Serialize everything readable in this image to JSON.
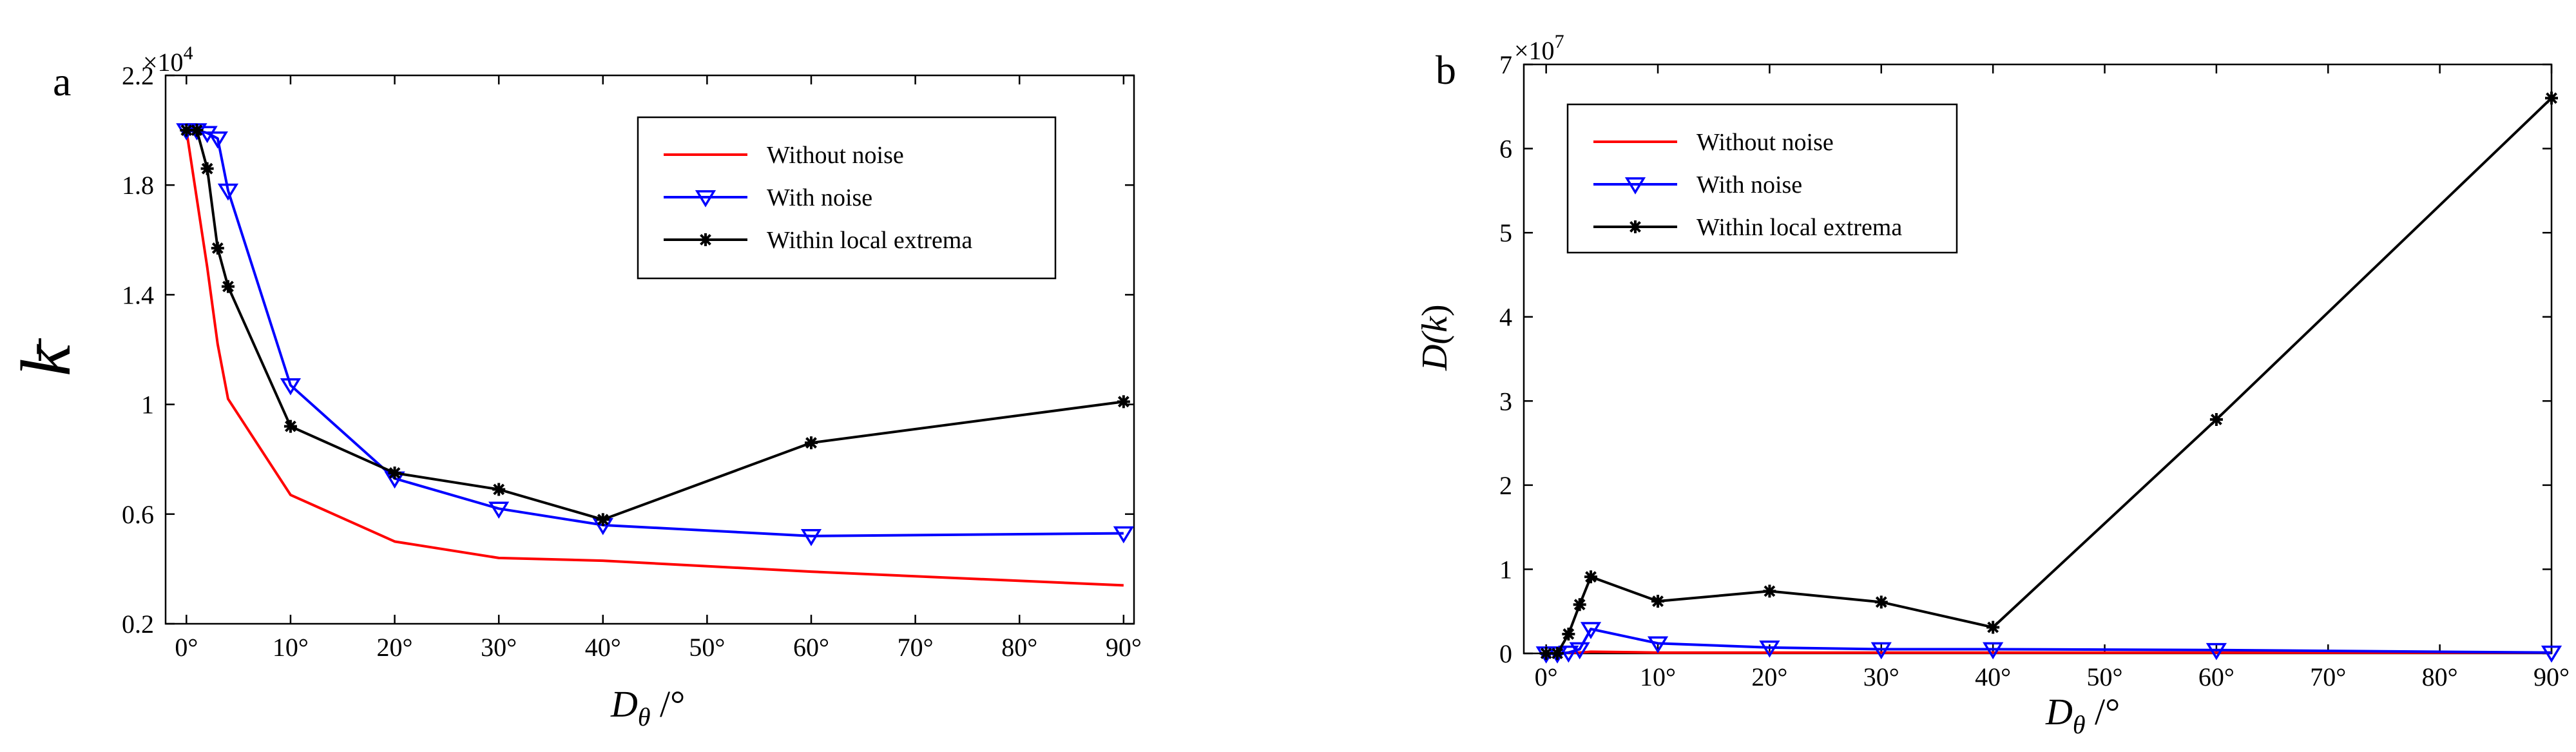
{
  "chart_data": [
    {
      "panel_label": "a",
      "type": "line",
      "xlabel_main": "D",
      "xlabel_sub": "θ",
      "xlabel_unit": " /°",
      "ylabel": "k",
      "exponent_label": "×10",
      "exponent_power": "4",
      "xlim": [
        -2,
        91
      ],
      "ylim": [
        0.2,
        2.2
      ],
      "x_tick_positions": [
        0,
        10,
        20,
        30,
        40,
        50,
        60,
        70,
        80,
        90
      ],
      "x_tick_labels": [
        "0°",
        "10°",
        "20°",
        "30°",
        "40°",
        "50°",
        "60°",
        "70°",
        "80°",
        "90°"
      ],
      "y_ticks": [
        0.2,
        0.6,
        1.0,
        1.4,
        1.8,
        2.2
      ],
      "y_tick_labels": [
        "0.2",
        "0.6",
        "1",
        "1.4",
        "1.8",
        "2.2"
      ],
      "legend_position": "top-right",
      "series": [
        {
          "name": "Without noise",
          "color": "#ff0000",
          "marker": "none",
          "x": [
            0,
            1,
            2,
            3,
            4,
            10,
            20,
            30,
            40,
            60,
            90
          ],
          "y": [
            2.0,
            1.75,
            1.5,
            1.22,
            1.02,
            0.67,
            0.5,
            0.44,
            0.43,
            0.39,
            0.34
          ]
        },
        {
          "name": "With noise",
          "color": "#0000ff",
          "marker": "triangle-down",
          "x": [
            0,
            1,
            2,
            3,
            4,
            10,
            20,
            30,
            40,
            60,
            90
          ],
          "y": [
            2.0,
            2.0,
            1.99,
            1.97,
            1.78,
            1.07,
            0.73,
            0.62,
            0.56,
            0.52,
            0.53
          ]
        },
        {
          "name": "Within local extrema",
          "color": "#000000",
          "marker": "star",
          "x": [
            0,
            1,
            2,
            3,
            4,
            10,
            20,
            30,
            40,
            60,
            90
          ],
          "y": [
            2.0,
            2.0,
            1.86,
            1.57,
            1.43,
            0.92,
            0.75,
            0.69,
            0.58,
            0.86,
            1.01
          ]
        }
      ]
    },
    {
      "panel_label": "b",
      "type": "line",
      "xlabel_main": "D",
      "xlabel_sub": "θ",
      "xlabel_unit": " /°",
      "ylabel_main": "D(",
      "ylabel_var": "k",
      "ylabel_close": ")",
      "exponent_label": "×10",
      "exponent_power": "7",
      "xlim": [
        -2,
        90
      ],
      "ylim": [
        0,
        7
      ],
      "x_tick_positions": [
        0,
        10,
        20,
        30,
        40,
        50,
        60,
        70,
        80,
        90
      ],
      "x_tick_labels": [
        "0°",
        "10°",
        "20°",
        "30°",
        "40°",
        "50°",
        "60°",
        "70°",
        "80°",
        "90°"
      ],
      "y_ticks": [
        0,
        1,
        2,
        3,
        4,
        5,
        6,
        7
      ],
      "y_tick_labels": [
        "0",
        "1",
        "2",
        "3",
        "4",
        "5",
        "6",
        "7"
      ],
      "legend_position": "top-left",
      "series": [
        {
          "name": "Without noise",
          "color": "#ff0000",
          "marker": "none",
          "x": [
            0,
            1,
            2,
            3,
            4,
            10,
            20,
            30,
            40,
            60,
            90
          ],
          "y": [
            0,
            0,
            0.01,
            0.01,
            0.02,
            0.01,
            0.01,
            0.01,
            0.01,
            0.01,
            0.01
          ]
        },
        {
          "name": "With noise",
          "color": "#0000ff",
          "marker": "triangle-down",
          "x": [
            0,
            1,
            2,
            3,
            4,
            10,
            20,
            30,
            40,
            60,
            90
          ],
          "y": [
            0,
            0,
            0.01,
            0.05,
            0.29,
            0.12,
            0.07,
            0.05,
            0.05,
            0.04,
            0.01
          ]
        },
        {
          "name": "Within local extrema",
          "color": "#000000",
          "marker": "star",
          "x": [
            0,
            1,
            2,
            3,
            4,
            10,
            20,
            30,
            40,
            60,
            90
          ],
          "y": [
            0,
            0,
            0.23,
            0.58,
            0.91,
            0.62,
            0.74,
            0.61,
            0.31,
            2.78,
            6.6
          ]
        }
      ]
    }
  ]
}
